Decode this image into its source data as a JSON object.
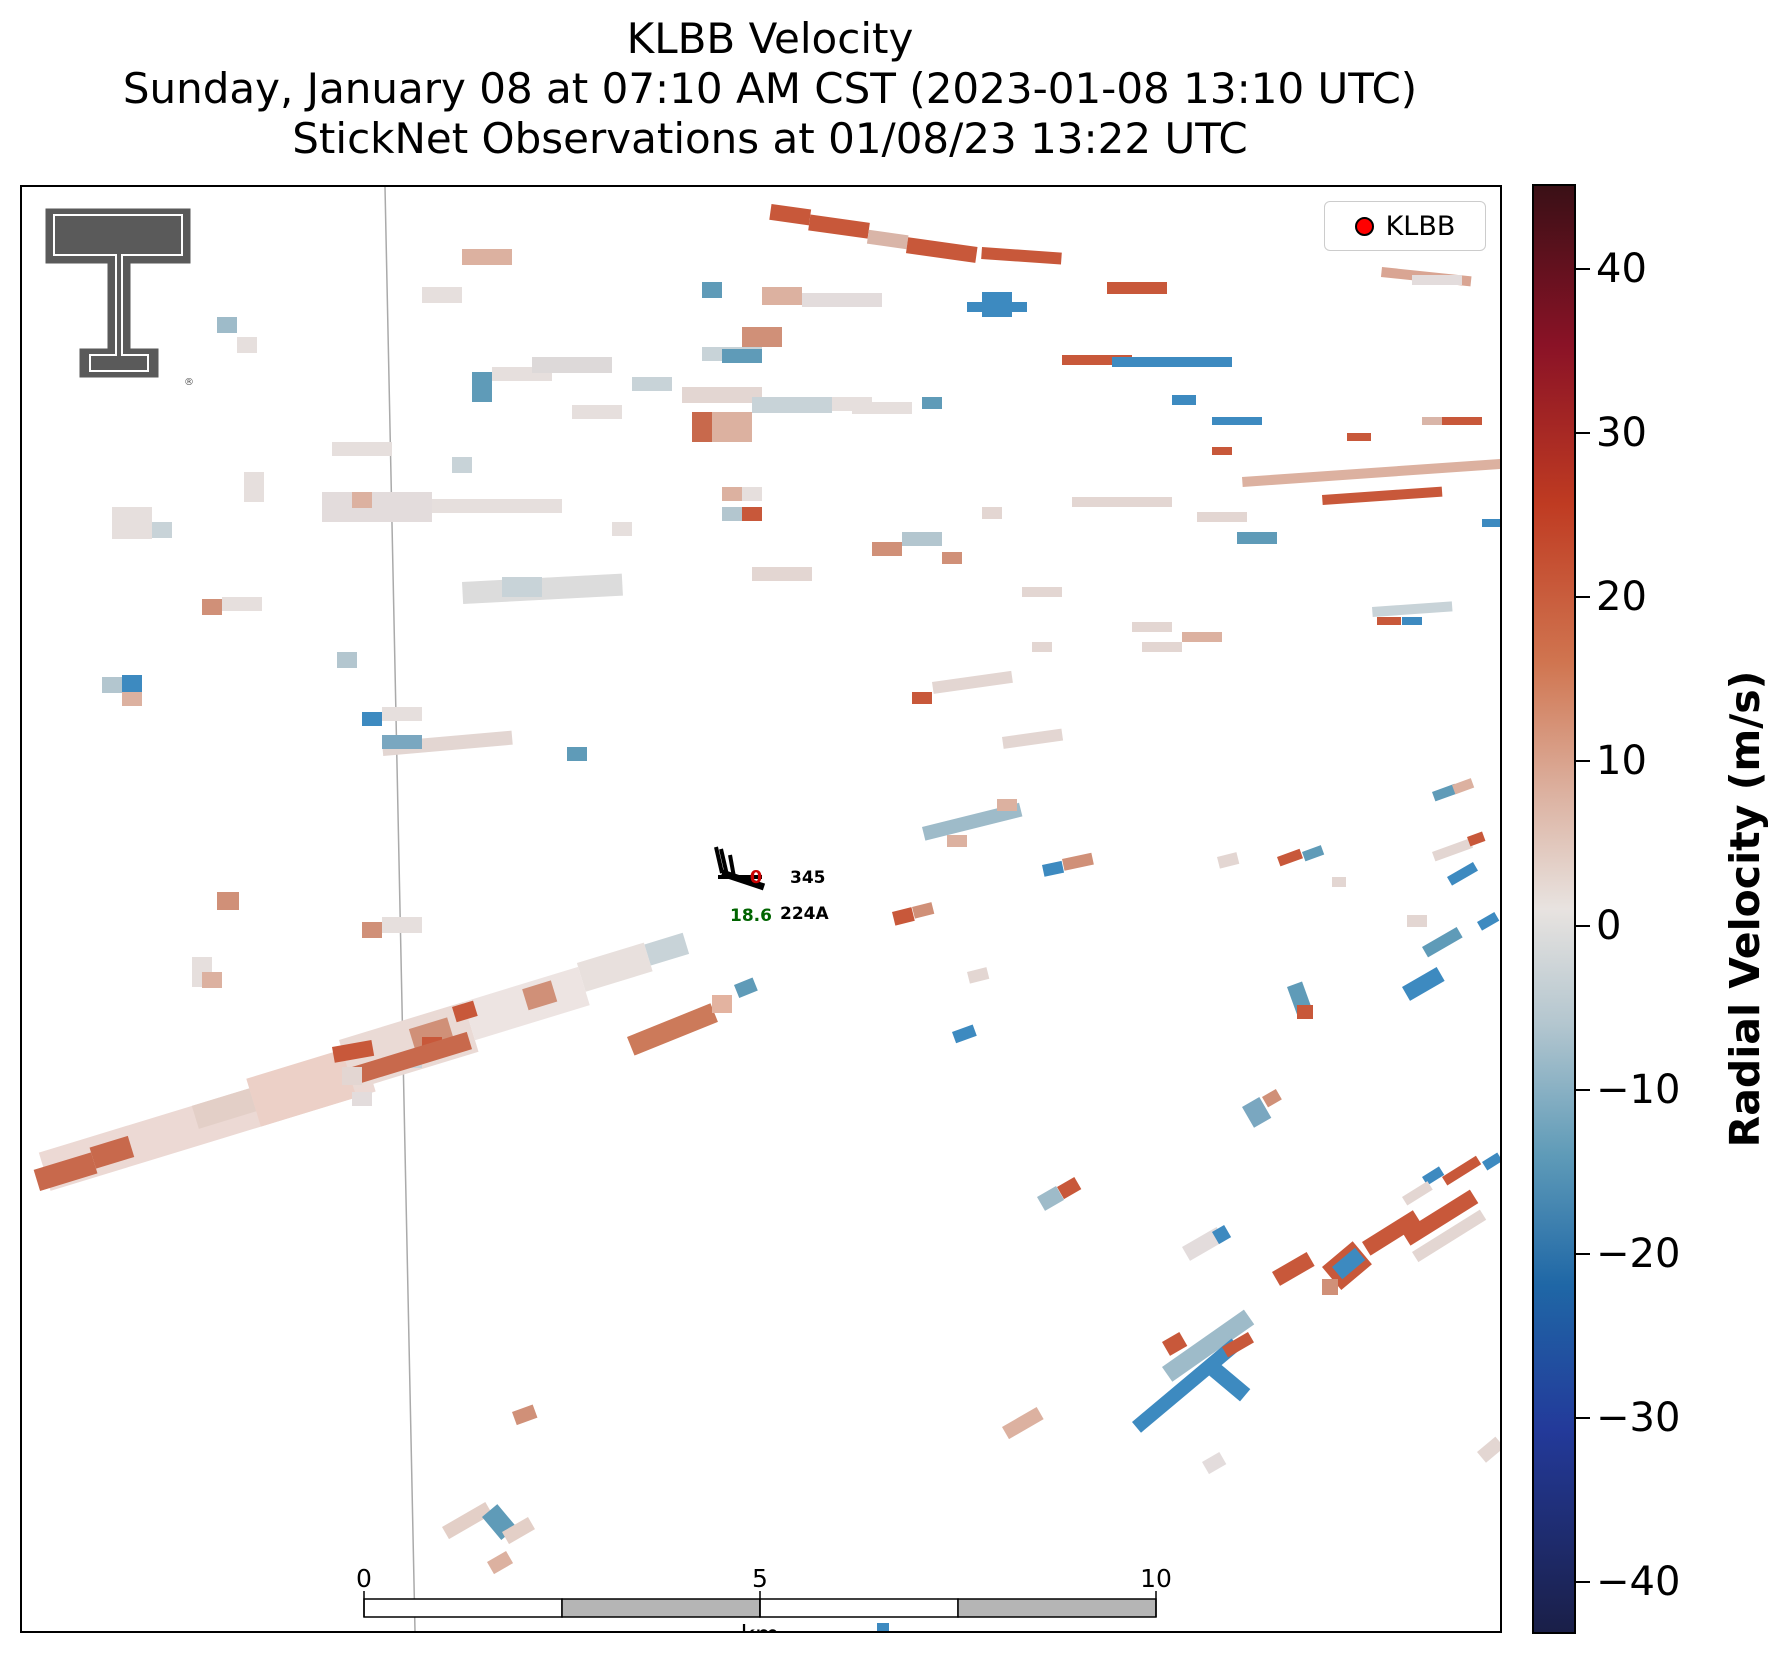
{
  "title": {
    "line1": "KLBB Velocity",
    "line2": "Sunday, January 08 at 07:10 AM CST (2023-01-08 13:10 UTC)",
    "line3": "StickNet Observations at 01/08/23 13:22 UTC"
  },
  "legend": {
    "label": "KLBB",
    "marker_color": "#ff0000"
  },
  "station": {
    "id": "224A",
    "temperature": "0",
    "pressure": "345",
    "dewpoint": "18.6",
    "temperature_color": "#cc0000",
    "dewpoint_color": "#006400"
  },
  "scale_bar": {
    "ticks": [
      "0",
      "5",
      "10"
    ],
    "unit": "km"
  },
  "colorbar": {
    "label": "Radial Velocity (m/s)",
    "ticks": [
      "40",
      "30",
      "20",
      "10",
      "0",
      "−10",
      "−20",
      "−30",
      "−40"
    ],
    "range": [
      -45,
      45
    ],
    "colors": {
      "max": "#3a1016",
      "strong_positive": "#bf3b22",
      "weak_positive": "#dcb1a0",
      "zero": "#e8e3e0",
      "weak_negative": "#b3c6cf",
      "strong_negative": "#1f67a6",
      "min": "#1a1f48"
    }
  },
  "logo": {
    "name": "Texas Tech Double T logo"
  }
}
